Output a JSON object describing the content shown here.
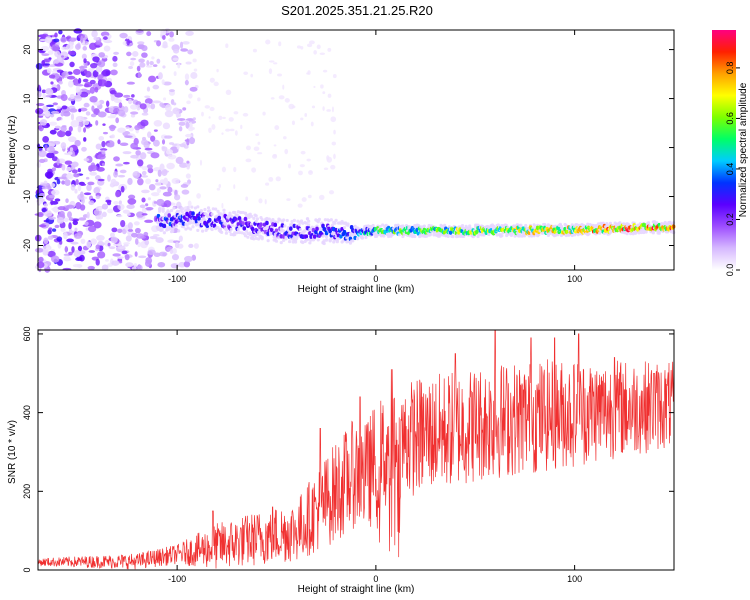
{
  "title": "S201.2025.351.21.25.R20",
  "colors": {
    "snr_line": "#f03030",
    "frame": "#000000",
    "background": "#ffffff"
  },
  "chart_data": [
    {
      "type": "heatmap",
      "xlabel": "Height of straight line (km)",
      "ylabel": "Frequency (Hz)",
      "xlim": [
        -170,
        150
      ],
      "ylim": [
        -25,
        24
      ],
      "x_ticks": [
        -100,
        0,
        100
      ],
      "y_ticks": [
        -20,
        -10,
        0,
        10,
        20
      ],
      "grid": false,
      "colorbar": {
        "label": "Normalized spectral amplitude",
        "range": [
          0.0,
          0.95
        ],
        "ticks": [
          0.0,
          0.2,
          0.4,
          0.6,
          0.8
        ],
        "colormap": [
          "#ffffff",
          "#d6b8ff",
          "#9d4dff",
          "#5a00ff",
          "#0033ff",
          "#00ccff",
          "#00ff66",
          "#7dff00",
          "#ffff00",
          "#ffa000",
          "#ff2000",
          "#ff0080"
        ]
      },
      "ridge_frequency_hz": [
        [
          -110,
          -15
        ],
        [
          -90,
          -14.5
        ],
        [
          -70,
          -15.5
        ],
        [
          -50,
          -17
        ],
        [
          -30,
          -17
        ],
        [
          -10,
          -17.5
        ],
        [
          0,
          -17
        ],
        [
          50,
          -17
        ],
        [
          100,
          -16.8
        ],
        [
          150,
          -16.2
        ]
      ],
      "ridge_amplitude": [
        [
          -110,
          0.35
        ],
        [
          -90,
          0.3
        ],
        [
          -60,
          0.28
        ],
        [
          -30,
          0.3
        ],
        [
          -10,
          0.4
        ],
        [
          0,
          0.55
        ],
        [
          50,
          0.65
        ],
        [
          100,
          0.75
        ],
        [
          130,
          0.85
        ],
        [
          150,
          0.9
        ]
      ]
    },
    {
      "type": "line",
      "xlabel": "Height of straight line (km)",
      "ylabel": "SNR (10 * v/v)",
      "xlim": [
        -170,
        150
      ],
      "ylim": [
        0,
        610
      ],
      "x_ticks": [
        -100,
        0,
        100
      ],
      "y_ticks": [
        0,
        200,
        400,
        600
      ],
      "grid": false,
      "series": [
        {
          "color": "#f03030",
          "trend": [
            [
              -170,
              20
            ],
            [
              -120,
              22
            ],
            [
              -100,
              40
            ],
            [
              -80,
              60
            ],
            [
              -60,
              80
            ],
            [
              -40,
              100
            ],
            [
              -30,
              150
            ],
            [
              -20,
              200
            ],
            [
              -10,
              250
            ],
            [
              -5,
              230
            ],
            [
              0,
              280
            ],
            [
              5,
              300
            ],
            [
              10,
              320
            ],
            [
              20,
              340
            ],
            [
              40,
              360
            ],
            [
              60,
              380
            ],
            [
              80,
              390
            ],
            [
              100,
              400
            ],
            [
              120,
              410
            ],
            [
              150,
              420
            ]
          ],
          "spread": [
            [
              -170,
              10
            ],
            [
              -100,
              25
            ],
            [
              -80,
              60
            ],
            [
              -40,
              80
            ],
            [
              -20,
              130
            ],
            [
              0,
              150
            ],
            [
              20,
              150
            ],
            [
              60,
              150
            ],
            [
              100,
              140
            ],
            [
              150,
              110
            ]
          ],
          "spikes": [
            [
              -82,
              150
            ],
            [
              -52,
              160
            ],
            [
              -28,
              360
            ],
            [
              -8,
              440
            ],
            [
              8,
              510
            ],
            [
              40,
              550
            ],
            [
              60,
              610
            ],
            [
              78,
              590
            ],
            [
              90,
              590
            ],
            [
              102,
              600
            ],
            [
              120,
              540
            ],
            [
              140,
              500
            ]
          ]
        }
      ]
    }
  ]
}
